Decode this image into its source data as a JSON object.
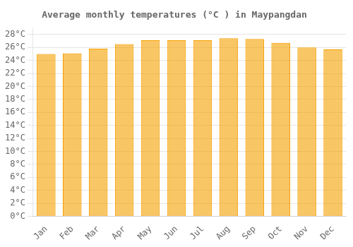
{
  "chart_data": {
    "type": "bar",
    "title": "Average monthly temperatures (°C ) in Maypangdan",
    "categories": [
      "Jan",
      "Feb",
      "Mar",
      "Apr",
      "May",
      "Jun",
      "Jul",
      "Aug",
      "Sep",
      "Oct",
      "Nov",
      "Dec"
    ],
    "values": [
      25.0,
      25.1,
      25.8,
      26.5,
      27.1,
      27.1,
      27.1,
      27.4,
      27.3,
      26.7,
      26.0,
      25.7
    ],
    "color": "#F5A000",
    "ylim": [
      0,
      29
    ],
    "yticks": [
      {
        "value": 0,
        "label": "0°C"
      },
      {
        "value": 2,
        "label": "2°C"
      },
      {
        "value": 4,
        "label": "4°C"
      },
      {
        "value": 6,
        "label": "6°C"
      },
      {
        "value": 8,
        "label": "8°C"
      },
      {
        "value": 10,
        "label": "10°C"
      },
      {
        "value": 12,
        "label": "12°C"
      },
      {
        "value": 14,
        "label": "14°C"
      },
      {
        "value": 16,
        "label": "16°C"
      },
      {
        "value": 18,
        "label": "18°C"
      },
      {
        "value": 20,
        "label": "20°C"
      },
      {
        "value": 22,
        "label": "22°C"
      },
      {
        "value": 24,
        "label": "24°C"
      },
      {
        "value": 26,
        "label": "26°C"
      },
      {
        "value": 28,
        "label": "28°C"
      }
    ],
    "grid": true
  }
}
